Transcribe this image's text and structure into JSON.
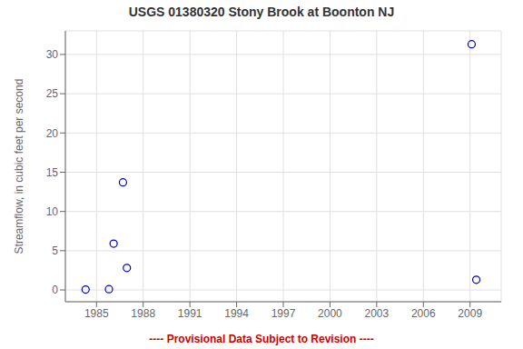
{
  "chart_data": {
    "type": "scatter",
    "title": "USGS 01380320 Stony Brook at Boonton NJ",
    "ylabel": "Streamflow, in cubic feet per second",
    "annotation": "---- Provisional Data Subject to Revision ----",
    "x": [
      1984.3,
      1985.8,
      1986.1,
      1986.7,
      1986.95,
      2009.1,
      2009.4
    ],
    "values": [
      0.05,
      0.1,
      5.9,
      13.7,
      2.8,
      31.3,
      1.3
    ],
    "color": "#0000bb",
    "marker": "circle",
    "xlim": [
      1983,
      2011
    ],
    "ylim": [
      -1.5,
      33
    ],
    "xticks": [
      1985,
      1988,
      1991,
      1994,
      1997,
      2000,
      2003,
      2006,
      2009
    ],
    "yticks": [
      0,
      5,
      10,
      15,
      20,
      25,
      30
    ],
    "grid": true
  }
}
